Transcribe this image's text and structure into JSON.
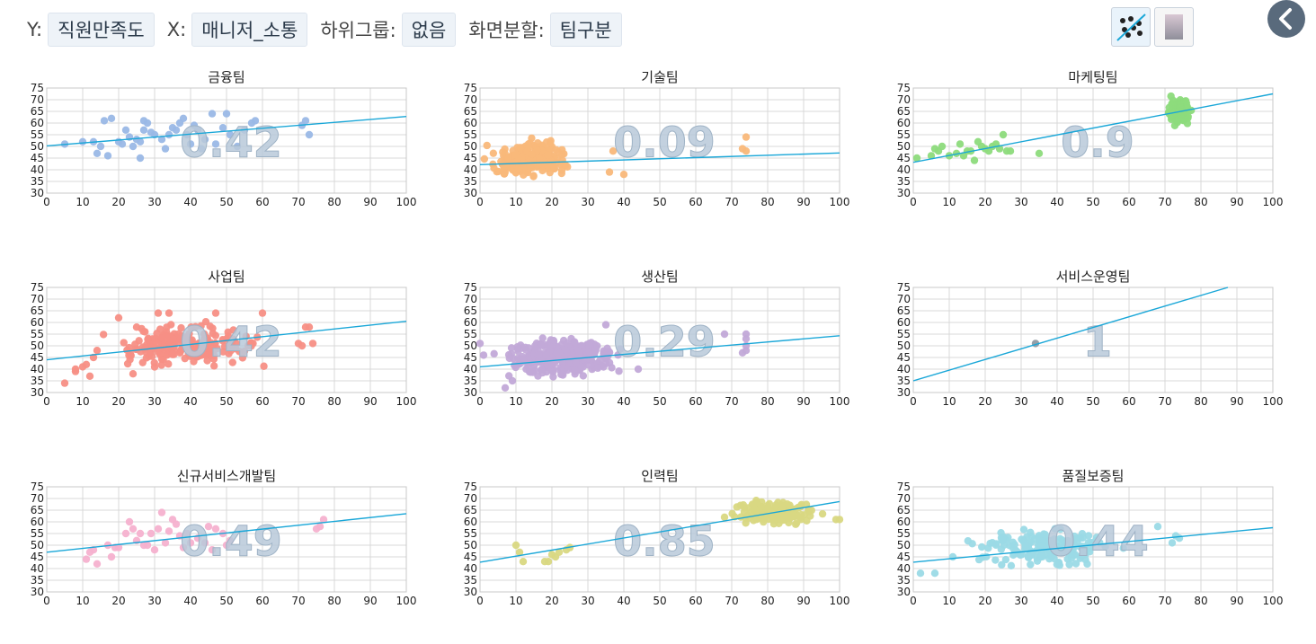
{
  "toolbar": {
    "y_label": "Y:",
    "y_value": "직원만족도",
    "x_label": "X:",
    "x_value": "매니저_소통",
    "subgroup_label": "하위그룹:",
    "subgroup_value": "없음",
    "split_label": "화면분할:",
    "split_value": "팀구분",
    "scatter_icon": "scatter-regression-icon",
    "gradient_icon": "gradient-icon",
    "back_icon": "chevron-left-icon"
  },
  "colors": {
    "trend": "#1aa7d8",
    "grid": "#d9d9d9",
    "corr_text": "#b8c9d9"
  },
  "chart_data": [
    {
      "type": "scatter",
      "title": "금융팀",
      "color": "#9ab8e6",
      "r": "0.42",
      "xlim": [
        0,
        100
      ],
      "ylim": [
        30,
        75
      ],
      "x_ticks": [
        0,
        10,
        20,
        30,
        40,
        50,
        60,
        70,
        80,
        90,
        100
      ],
      "y_ticks": [
        30,
        35,
        40,
        45,
        50,
        55,
        60,
        65,
        70,
        75
      ],
      "trend": [
        [
          0,
          50.2
        ],
        [
          100,
          62.8
        ]
      ],
      "points": [
        [
          5,
          51
        ],
        [
          10,
          52
        ],
        [
          13,
          52
        ],
        [
          14,
          47
        ],
        [
          15,
          50
        ],
        [
          16,
          61
        ],
        [
          17,
          46
        ],
        [
          18,
          62
        ],
        [
          20,
          52
        ],
        [
          21,
          51
        ],
        [
          22,
          57
        ],
        [
          23,
          54
        ],
        [
          24,
          50
        ],
        [
          25,
          53
        ],
        [
          26,
          52
        ],
        [
          26,
          45
        ],
        [
          27,
          57
        ],
        [
          27,
          61
        ],
        [
          28,
          60
        ],
        [
          29,
          56
        ],
        [
          30,
          55
        ],
        [
          32,
          53
        ],
        [
          33,
          49
        ],
        [
          34,
          55
        ],
        [
          35,
          58
        ],
        [
          36,
          57
        ],
        [
          37,
          60
        ],
        [
          38,
          62
        ],
        [
          39,
          55
        ],
        [
          40,
          51
        ],
        [
          41,
          59
        ],
        [
          42,
          57
        ],
        [
          43,
          49
        ],
        [
          44,
          53
        ],
        [
          46,
          64
        ],
        [
          47,
          51
        ],
        [
          49,
          58
        ],
        [
          50,
          64
        ],
        [
          51,
          55
        ],
        [
          53,
          50
        ],
        [
          55,
          57
        ],
        [
          57,
          60
        ],
        [
          58,
          61
        ],
        [
          71,
          59
        ],
        [
          72,
          61
        ],
        [
          73,
          55
        ]
      ]
    },
    {
      "type": "scatter",
      "title": "기술팀",
      "color": "#f9b87a",
      "r": "0.09",
      "xlim": [
        0,
        100
      ],
      "ylim": [
        30,
        75
      ],
      "x_ticks": [
        0,
        10,
        20,
        30,
        40,
        50,
        60,
        70,
        80,
        90,
        100
      ],
      "y_ticks": [
        30,
        35,
        40,
        45,
        50,
        55,
        60,
        65,
        70,
        75
      ],
      "trend": [
        [
          0,
          42.2
        ],
        [
          100,
          47.2
        ]
      ],
      "cloud": {
        "n": 260,
        "x": [
          0,
          28
        ],
        "y": [
          34,
          54
        ],
        "seed": 11
      },
      "points": [
        [
          36,
          39
        ],
        [
          37,
          48
        ],
        [
          40,
          38
        ],
        [
          74,
          54
        ],
        [
          74,
          48
        ],
        [
          73,
          49
        ]
      ]
    },
    {
      "type": "scatter",
      "title": "마케팅팀",
      "color": "#8ddb7c",
      "r": "0.9",
      "xlim": [
        0,
        100
      ],
      "ylim": [
        30,
        75
      ],
      "x_ticks": [
        0,
        10,
        20,
        30,
        40,
        50,
        60,
        70,
        80,
        90,
        100
      ],
      "y_ticks": [
        30,
        35,
        40,
        45,
        50,
        55,
        60,
        65,
        70,
        75
      ],
      "trend": [
        [
          0,
          43.2
        ],
        [
          100,
          72.5
        ]
      ],
      "cloud": {
        "n": 120,
        "x": [
          70,
          78
        ],
        "y": [
          58,
          72
        ],
        "seed": 23
      },
      "points": [
        [
          1,
          45
        ],
        [
          5,
          46
        ],
        [
          6,
          49
        ],
        [
          7,
          48
        ],
        [
          8,
          50
        ],
        [
          10,
          46
        ],
        [
          12,
          47
        ],
        [
          13,
          51
        ],
        [
          14,
          46
        ],
        [
          15,
          48
        ],
        [
          16,
          48
        ],
        [
          17,
          44
        ],
        [
          18,
          52
        ],
        [
          19,
          50
        ],
        [
          20,
          49
        ],
        [
          21,
          48
        ],
        [
          22,
          50
        ],
        [
          23,
          51
        ],
        [
          24,
          49
        ],
        [
          25,
          55
        ],
        [
          26,
          48
        ],
        [
          27,
          48
        ],
        [
          35,
          47
        ]
      ]
    },
    {
      "type": "scatter",
      "title": "사업팀",
      "color": "#f78f85",
      "r": "0.42",
      "xlim": [
        0,
        100
      ],
      "ylim": [
        30,
        75
      ],
      "x_ticks": [
        0,
        10,
        20,
        30,
        40,
        50,
        60,
        70,
        80,
        90,
        100
      ],
      "y_ticks": [
        30,
        35,
        40,
        45,
        50,
        55,
        60,
        65,
        70,
        75
      ],
      "trend": [
        [
          0,
          44
        ],
        [
          100,
          60.5
        ]
      ],
      "cloud": {
        "n": 210,
        "x": [
          12,
          64
        ],
        "y": [
          38,
          62
        ],
        "seed": 37
      },
      "points": [
        [
          5,
          34
        ],
        [
          8,
          39
        ],
        [
          8,
          40
        ],
        [
          10,
          41
        ],
        [
          11,
          42
        ],
        [
          12,
          37
        ],
        [
          13,
          45
        ],
        [
          14,
          48
        ],
        [
          20,
          62
        ],
        [
          24,
          38
        ],
        [
          25,
          58
        ],
        [
          31,
          64
        ],
        [
          34,
          64
        ],
        [
          47,
          64
        ],
        [
          60,
          64
        ],
        [
          70,
          51
        ],
        [
          71,
          50
        ],
        [
          72,
          58
        ],
        [
          73,
          58
        ],
        [
          74,
          51
        ]
      ]
    },
    {
      "type": "scatter",
      "title": "생산팀",
      "color": "#c2a9d8",
      "r": "0.29",
      "xlim": [
        0,
        100
      ],
      "ylim": [
        30,
        75
      ],
      "x_ticks": [
        0,
        10,
        20,
        30,
        40,
        50,
        60,
        70,
        80,
        90,
        100
      ],
      "y_ticks": [
        30,
        35,
        40,
        45,
        50,
        55,
        60,
        65,
        70,
        75
      ],
      "trend": [
        [
          0,
          41
        ],
        [
          100,
          54.3
        ]
      ],
      "cloud": {
        "n": 320,
        "x": [
          2,
          42
        ],
        "y": [
          35,
          56
        ],
        "seed": 53
      },
      "points": [
        [
          0,
          51
        ],
        [
          1,
          46
        ],
        [
          7,
          32
        ],
        [
          9,
          35
        ],
        [
          35,
          59
        ],
        [
          44,
          40
        ],
        [
          68,
          55
        ],
        [
          73,
          47
        ],
        [
          74,
          48
        ],
        [
          74,
          50
        ],
        [
          74,
          53
        ],
        [
          74,
          55
        ]
      ]
    },
    {
      "type": "scatter",
      "title": "서비스운영팀",
      "color": "#8f9aa3",
      "r": "1",
      "xlim": [
        0,
        100
      ],
      "ylim": [
        30,
        75
      ],
      "x_ticks": [
        0,
        10,
        20,
        30,
        40,
        50,
        60,
        70,
        80,
        90,
        100
      ],
      "y_ticks": [
        30,
        35,
        40,
        45,
        50,
        55,
        60,
        65,
        70,
        75
      ],
      "trend": [
        [
          0,
          35
        ],
        [
          87.5,
          75
        ]
      ],
      "points": [
        [
          34,
          51
        ]
      ]
    },
    {
      "type": "scatter",
      "title": "신규서비스개발팀",
      "color": "#f5b1cf",
      "r": "0.49",
      "xlim": [
        0,
        100
      ],
      "ylim": [
        30,
        75
      ],
      "x_ticks": [
        0,
        10,
        20,
        30,
        40,
        50,
        60,
        70,
        80,
        90,
        100
      ],
      "y_ticks": [
        30,
        35,
        40,
        45,
        50,
        55,
        60,
        65,
        70,
        75
      ],
      "trend": [
        [
          0,
          47
        ],
        [
          100,
          63.5
        ]
      ],
      "points": [
        [
          11,
          44
        ],
        [
          12,
          47
        ],
        [
          13,
          48
        ],
        [
          14,
          42
        ],
        [
          17,
          50
        ],
        [
          18,
          45
        ],
        [
          19,
          49
        ],
        [
          20,
          49
        ],
        [
          22,
          55
        ],
        [
          23,
          60
        ],
        [
          24,
          57
        ],
        [
          25,
          52
        ],
        [
          26,
          55
        ],
        [
          27,
          50
        ],
        [
          28,
          50
        ],
        [
          29,
          55
        ],
        [
          30,
          48
        ],
        [
          31,
          57
        ],
        [
          32,
          64
        ],
        [
          33,
          51
        ],
        [
          34,
          56
        ],
        [
          35,
          61
        ],
        [
          36,
          59
        ],
        [
          37,
          54
        ],
        [
          38,
          49
        ],
        [
          39,
          55
        ],
        [
          40,
          51
        ],
        [
          42,
          53
        ],
        [
          44,
          51
        ],
        [
          45,
          58
        ],
        [
          46,
          48
        ],
        [
          47,
          57
        ],
        [
          49,
          55
        ],
        [
          50,
          50
        ],
        [
          51,
          52
        ],
        [
          75,
          57
        ],
        [
          76,
          58
        ],
        [
          77,
          61
        ]
      ]
    },
    {
      "type": "scatter",
      "title": "인력팀",
      "color": "#d9d882",
      "r": "0.85",
      "xlim": [
        0,
        100
      ],
      "ylim": [
        30,
        75
      ],
      "x_ticks": [
        0,
        10,
        20,
        30,
        40,
        50,
        60,
        70,
        80,
        90,
        100
      ],
      "y_ticks": [
        30,
        35,
        40,
        45,
        50,
        55,
        60,
        65,
        70,
        75
      ],
      "trend": [
        [
          0,
          42.7
        ],
        [
          100,
          68.7
        ]
      ],
      "cloud": {
        "n": 130,
        "x": [
          68,
          96
        ],
        "y": [
          57,
          71
        ],
        "seed": 71
      },
      "points": [
        [
          10,
          50
        ],
        [
          11,
          47
        ],
        [
          12,
          43
        ],
        [
          18,
          43
        ],
        [
          19,
          43
        ],
        [
          20,
          46
        ],
        [
          21,
          45
        ],
        [
          22,
          47
        ],
        [
          24,
          48
        ],
        [
          25,
          49
        ],
        [
          68,
          62
        ],
        [
          99,
          61
        ],
        [
          100,
          61
        ]
      ]
    },
    {
      "type": "scatter",
      "title": "품질보증팀",
      "color": "#9bdae6",
      "r": "0.44",
      "xlim": [
        0,
        100
      ],
      "ylim": [
        30,
        75
      ],
      "x_ticks": [
        0,
        10,
        20,
        30,
        40,
        50,
        60,
        70,
        80,
        90,
        100
      ],
      "y_ticks": [
        30,
        35,
        40,
        45,
        50,
        55,
        60,
        65,
        70,
        75
      ],
      "trend": [
        [
          0,
          42.7
        ],
        [
          100,
          57.5
        ]
      ],
      "cloud": {
        "n": 180,
        "x": [
          12,
          62
        ],
        "y": [
          38,
          60
        ],
        "seed": 89
      },
      "points": [
        [
          2,
          38
        ],
        [
          6,
          38
        ],
        [
          11,
          45
        ],
        [
          72,
          51
        ],
        [
          73,
          54
        ],
        [
          74,
          53
        ],
        [
          68,
          58
        ]
      ]
    }
  ]
}
